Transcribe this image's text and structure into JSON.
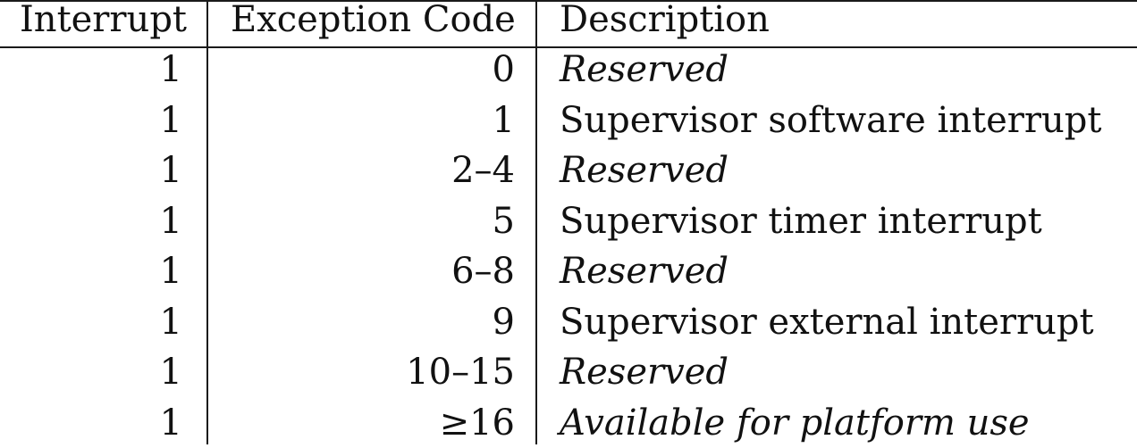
{
  "table": {
    "headers": [
      "Interrupt",
      "Exception Code",
      "Description"
    ],
    "rows": [
      {
        "interrupt": "1",
        "code": "0",
        "description": "Reserved",
        "italic": true
      },
      {
        "interrupt": "1",
        "code": "1",
        "description": "Supervisor software interrupt",
        "italic": false
      },
      {
        "interrupt": "1",
        "code": "2–4",
        "description": "Reserved",
        "italic": true
      },
      {
        "interrupt": "1",
        "code": "5",
        "description": "Supervisor timer interrupt",
        "italic": false
      },
      {
        "interrupt": "1",
        "code": "6–8",
        "description": "Reserved",
        "italic": true
      },
      {
        "interrupt": "1",
        "code": "9",
        "description": "Supervisor external interrupt",
        "italic": false
      },
      {
        "interrupt": "1",
        "code": "10–15",
        "description": "Reserved",
        "italic": true
      },
      {
        "interrupt": "1",
        "code": "≥16",
        "description": "Available for platform use",
        "italic": true
      }
    ]
  }
}
